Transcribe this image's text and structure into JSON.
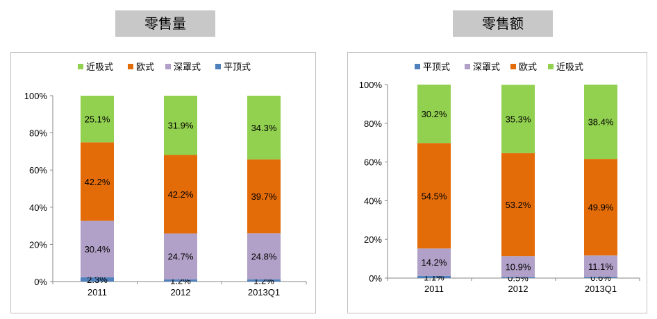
{
  "charts": [
    {
      "title": "零售量",
      "legend": [
        {
          "name": "近吸式",
          "color": "#92d050"
        },
        {
          "name": "欧式",
          "color": "#e36c09"
        },
        {
          "name": "深罩式",
          "color": "#b1a0c7"
        },
        {
          "name": "平顶式",
          "color": "#4f81bd"
        }
      ]
    },
    {
      "title": "零售额",
      "legend": [
        {
          "name": "平顶式",
          "color": "#4f81bd"
        },
        {
          "name": "深罩式",
          "color": "#b1a0c7"
        },
        {
          "name": "欧式",
          "color": "#e36c09"
        },
        {
          "name": "近吸式",
          "color": "#92d050"
        }
      ]
    }
  ],
  "chart_data": [
    {
      "type": "bar",
      "stacked": true,
      "title": "零售量",
      "categories": [
        "2011",
        "2012",
        "2013Q1"
      ],
      "yticks": [
        "0%",
        "20%",
        "40%",
        "60%",
        "80%",
        "100%"
      ],
      "ylim": [
        0,
        100
      ],
      "grid": false,
      "legend_position": "top",
      "series": [
        {
          "name": "平顶式",
          "color": "#4f81bd",
          "values": [
            2.3,
            1.2,
            1.2
          ],
          "labels": [
            "2.3%",
            "1.2%",
            "1.2%"
          ]
        },
        {
          "name": "深罩式",
          "color": "#b1a0c7",
          "values": [
            30.4,
            24.7,
            24.8
          ],
          "labels": [
            "30.4%",
            "24.7%",
            "24.8%"
          ]
        },
        {
          "name": "欧式",
          "color": "#e36c09",
          "values": [
            42.2,
            42.2,
            39.7
          ],
          "labels": [
            "42.2%",
            "42.2%",
            "39.7%"
          ]
        },
        {
          "name": "近吸式",
          "color": "#92d050",
          "values": [
            25.1,
            31.9,
            34.3
          ],
          "labels": [
            "25.1%",
            "31.9%",
            "34.3%"
          ]
        }
      ]
    },
    {
      "type": "bar",
      "stacked": true,
      "title": "零售额",
      "categories": [
        "2011",
        "2012",
        "2013Q1"
      ],
      "yticks": [
        "0%",
        "20%",
        "40%",
        "60%",
        "80%",
        "100%"
      ],
      "ylim": [
        0,
        100
      ],
      "grid": false,
      "legend_position": "top",
      "series": [
        {
          "name": "平顶式",
          "color": "#4f81bd",
          "values": [
            1.1,
            0.5,
            0.6
          ],
          "labels": [
            "1.1%",
            "0.5%",
            "0.6%"
          ]
        },
        {
          "name": "深罩式",
          "color": "#b1a0c7",
          "values": [
            14.2,
            10.9,
            11.1
          ],
          "labels": [
            "14.2%",
            "10.9%",
            "11.1%"
          ]
        },
        {
          "name": "欧式",
          "color": "#e36c09",
          "values": [
            54.5,
            53.2,
            49.9
          ],
          "labels": [
            "54.5%",
            "53.2%",
            "49.9%"
          ]
        },
        {
          "name": "近吸式",
          "color": "#92d050",
          "values": [
            30.2,
            35.3,
            38.4
          ],
          "labels": [
            "30.2%",
            "35.3%",
            "38.4%"
          ]
        }
      ]
    }
  ]
}
